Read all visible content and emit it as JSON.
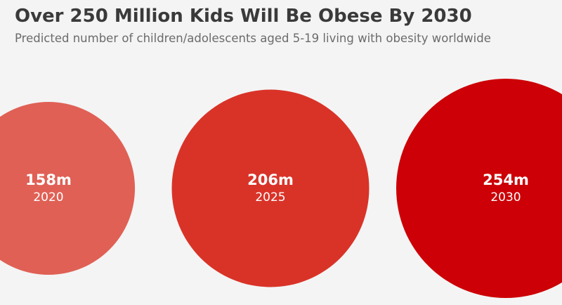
{
  "header": {
    "title": "Over 250 Million Kids Will Be Obese By 2030",
    "subtitle": "Predicted number of children/adolescents aged 5-19 living with obesity worldwide"
  },
  "chart_data": {
    "type": "bubble",
    "title": "Over 250 Million Kids Will Be Obese By 2030",
    "subtitle": "Predicted number of children/adolescents aged 5-19 living with obesity worldwide",
    "unit": "million",
    "categories": [
      "2020",
      "2025",
      "2030"
    ],
    "values": [
      158,
      206,
      254
    ],
    "value_labels": [
      "158m",
      "206m",
      "254m"
    ],
    "colors": [
      "#e06055",
      "#d93328",
      "#cc0006"
    ],
    "encoding": "circle area proportional to value",
    "grid": false,
    "legend": "none"
  }
}
